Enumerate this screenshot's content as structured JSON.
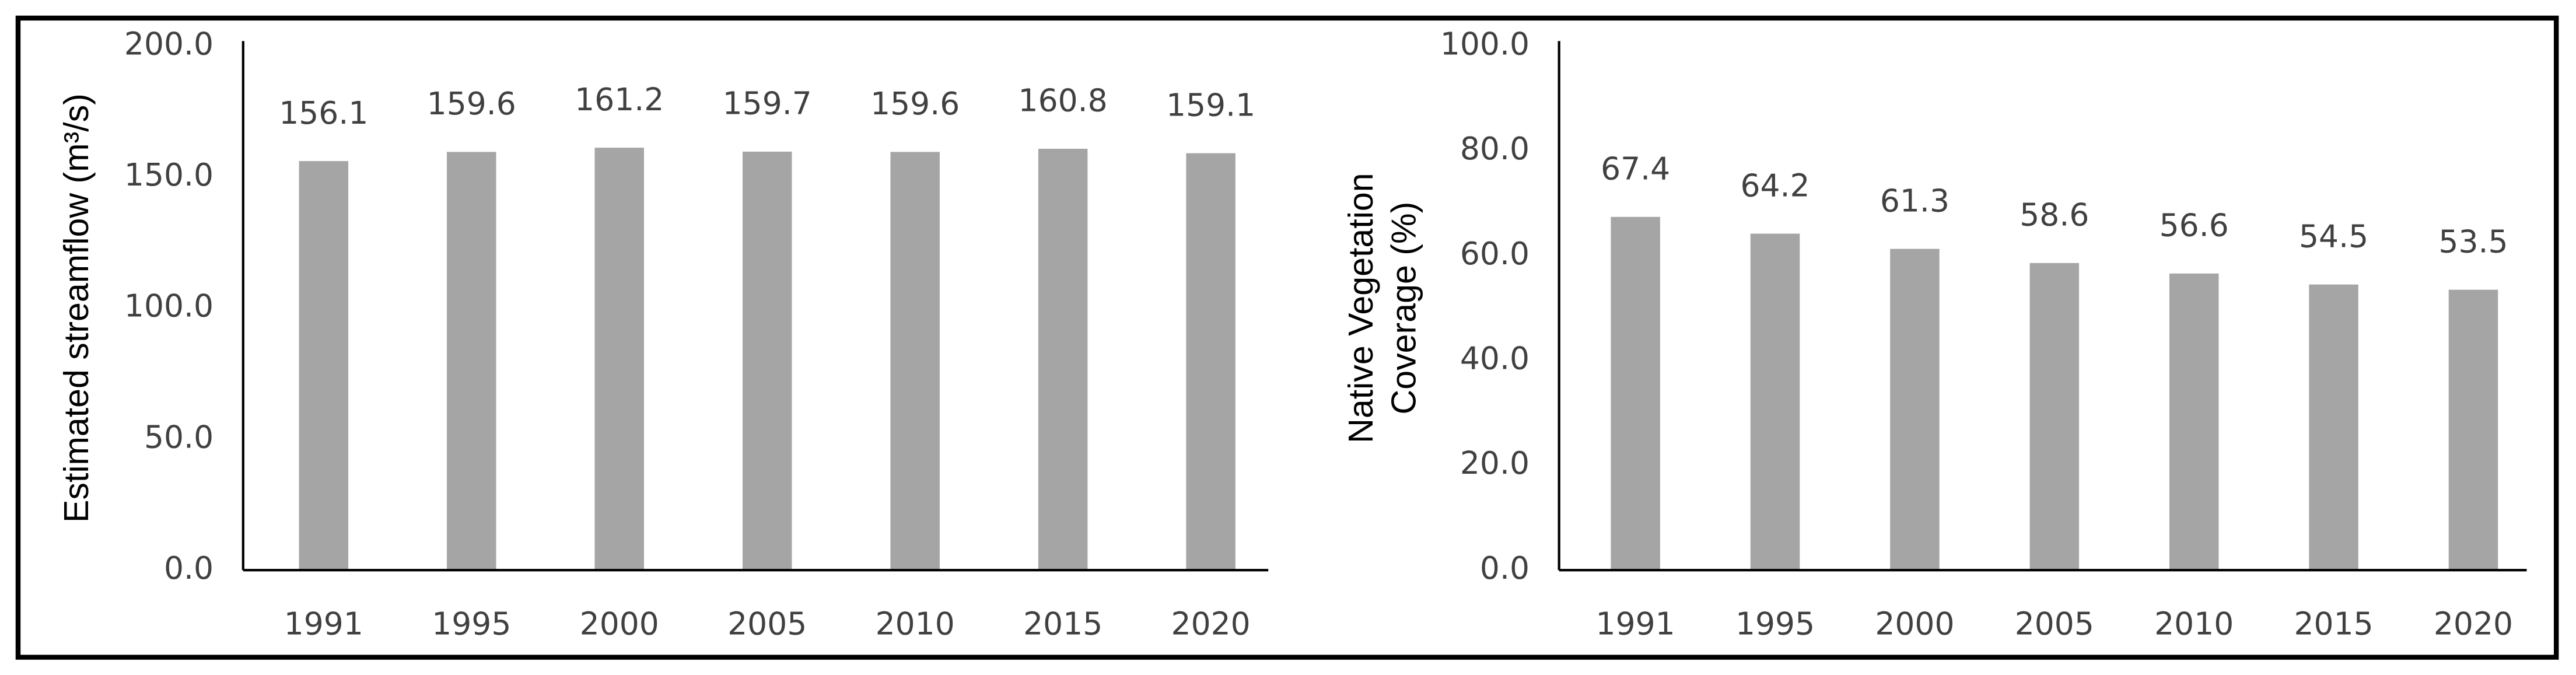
{
  "chart_data": [
    {
      "type": "bar",
      "ylabel": [
        "Estimated streamflow (m³/s)"
      ],
      "categories": [
        "1991",
        "1995",
        "2000",
        "2005",
        "2010",
        "2015",
        "2020"
      ],
      "values": [
        156.1,
        159.6,
        161.2,
        159.7,
        159.6,
        160.8,
        159.1
      ],
      "color": "#a5a5a5",
      "ylim": [
        0,
        200
      ],
      "yticks": [
        {
          "value": 0,
          "label": "0.0"
        },
        {
          "value": 50,
          "label": "50.0"
        },
        {
          "value": 100,
          "label": "100.0"
        },
        {
          "value": 150,
          "label": "150.0"
        },
        {
          "value": 200,
          "label": "200.0"
        }
      ],
      "grid": false
    },
    {
      "type": "bar",
      "ylabel": [
        "Native Vegetation",
        "Coverage (%)"
      ],
      "categories": [
        "1991",
        "1995",
        "2000",
        "2005",
        "2010",
        "2015",
        "2020"
      ],
      "values": [
        67.4,
        64.2,
        61.3,
        58.6,
        56.6,
        54.5,
        53.5
      ],
      "color": "#a5a5a5",
      "ylim": [
        0,
        100
      ],
      "yticks": [
        {
          "value": 0,
          "label": "0.0"
        },
        {
          "value": 20,
          "label": "20.0"
        },
        {
          "value": 40,
          "label": "40.0"
        },
        {
          "value": 60,
          "label": "60.0"
        },
        {
          "value": 80,
          "label": "80.0"
        },
        {
          "value": 100,
          "label": "100.0"
        }
      ],
      "grid": false
    }
  ]
}
